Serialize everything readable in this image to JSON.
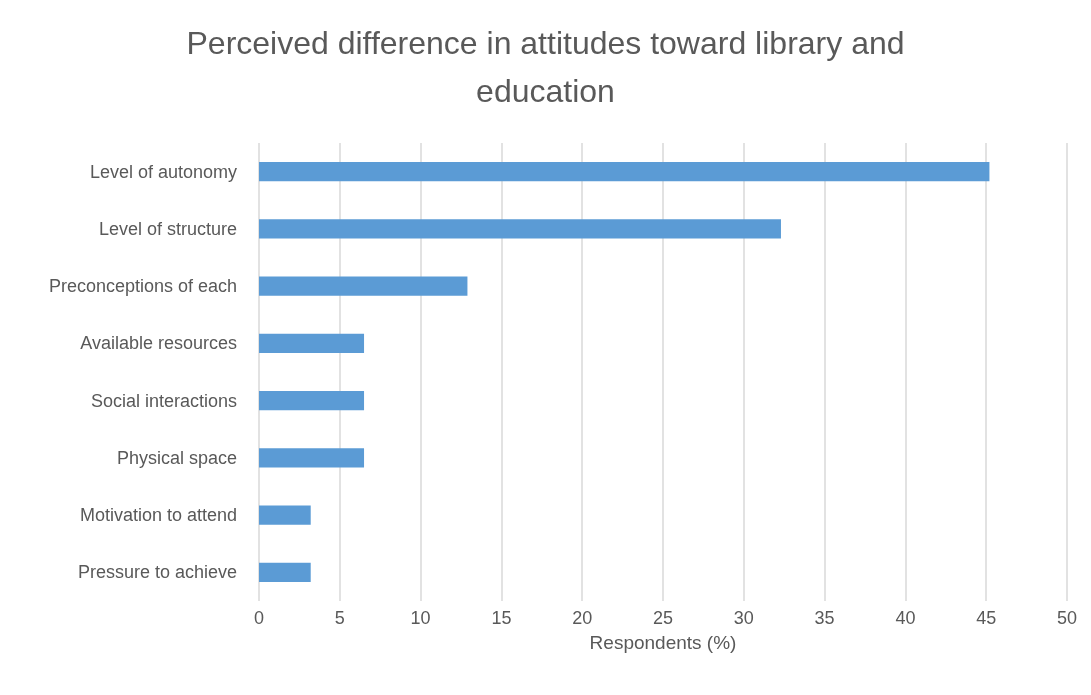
{
  "chart_data": {
    "type": "bar",
    "orientation": "horizontal",
    "title": "Perceived difference in attitudes toward library and\neducation",
    "xlabel": "Respondents (%)",
    "categories": [
      "Level of autonomy",
      "Level of structure",
      "Preconceptions of each",
      "Available resources",
      "Social interactions",
      "Physical space",
      "Motivation to attend",
      "Pressure to achieve"
    ],
    "values": [
      45.2,
      32.3,
      12.9,
      6.5,
      6.5,
      6.5,
      3.2,
      3.2
    ],
    "color": "#5b9bd5",
    "xlim": [
      0,
      50
    ],
    "xticks": [
      0,
      5,
      10,
      15,
      20,
      25,
      30,
      35,
      40,
      45,
      50
    ],
    "grid": "x"
  }
}
